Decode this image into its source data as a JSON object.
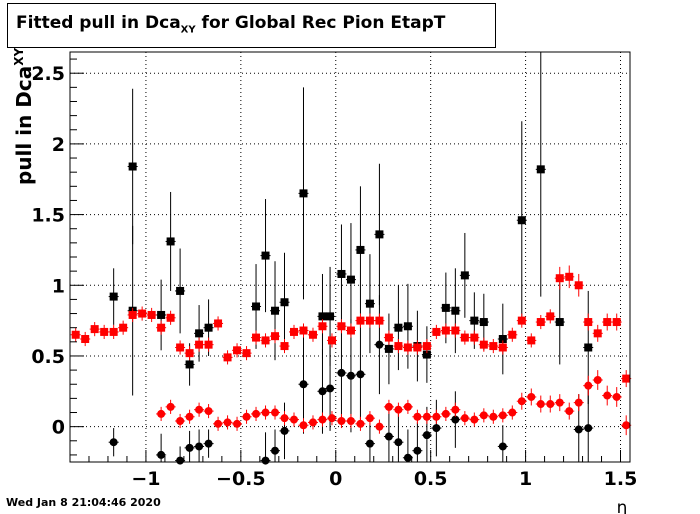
{
  "chart_data": {
    "type": "scatter",
    "title_main": "Fitted pull in Dca",
    "title_sub": "XY",
    "title_rest": " for Global Rec Pion EtapT",
    "xlabel": "η",
    "ylabel_main": "pull in Dca",
    "ylabel_sub": "XY",
    "xlim": [
      -1.4,
      1.55
    ],
    "ylim": [
      -0.25,
      2.65
    ],
    "xticks": [
      {
        "v": -1,
        "label": "−1"
      },
      {
        "v": -0.5,
        "label": "−0.5"
      },
      {
        "v": 0,
        "label": "0"
      },
      {
        "v": 0.5,
        "label": "0.5"
      },
      {
        "v": 1,
        "label": "1"
      },
      {
        "v": 1.5,
        "label": "1.5"
      }
    ],
    "yticks": [
      {
        "v": 0,
        "label": "0"
      },
      {
        "v": 0.5,
        "label": "0.5"
      },
      {
        "v": 1,
        "label": "1"
      },
      {
        "v": 1.5,
        "label": "1.5"
      },
      {
        "v": 2,
        "label": "2"
      },
      {
        "v": 2.5,
        "label": "2.5"
      }
    ],
    "grid": true,
    "series": [
      {
        "color": "#000000",
        "marker": "square",
        "points": [
          [
            -1.17,
            0.92,
            0.2
          ],
          [
            -1.07,
            0.82,
            0.6
          ],
          [
            -1.07,
            1.84,
            0.55
          ],
          [
            -0.92,
            0.79,
            0.25
          ],
          [
            -0.87,
            1.31,
            0.35
          ],
          [
            -0.82,
            0.96,
            0.3
          ],
          [
            -0.77,
            0.44,
            0.15
          ],
          [
            -0.72,
            0.66,
            0.2
          ],
          [
            -0.67,
            0.7,
            0.2
          ],
          [
            -0.42,
            0.85,
            0.3
          ],
          [
            -0.37,
            1.21,
            0.4
          ],
          [
            -0.32,
            0.82,
            0.35
          ],
          [
            -0.27,
            0.88,
            0.35
          ],
          [
            -0.17,
            1.65,
            0.75
          ],
          [
            -0.07,
            0.78,
            0.3
          ],
          [
            -0.03,
            0.78,
            0.35
          ],
          [
            0.03,
            1.08,
            0.35
          ],
          [
            0.08,
            1.04,
            0.4
          ],
          [
            0.13,
            1.25,
            0.45
          ],
          [
            0.18,
            0.87,
            0.35
          ],
          [
            0.23,
            1.36,
            0.5
          ],
          [
            0.28,
            0.55,
            0.25
          ],
          [
            0.33,
            0.7,
            0.3
          ],
          [
            0.38,
            0.71,
            0.3
          ],
          [
            0.43,
            0.57,
            0.25
          ],
          [
            0.48,
            0.51,
            0.2
          ],
          [
            0.58,
            0.84,
            0.25
          ],
          [
            0.63,
            0.82,
            0.3
          ],
          [
            0.68,
            1.07,
            0.3
          ],
          [
            0.73,
            0.75,
            0.2
          ],
          [
            0.78,
            0.74,
            0.2
          ],
          [
            0.88,
            0.62,
            0.25
          ],
          [
            0.98,
            1.46,
            0.7
          ],
          [
            1.08,
            1.82,
            0.9
          ],
          [
            1.18,
            0.74,
            0.3
          ],
          [
            1.33,
            0.56,
            0.4
          ]
        ]
      },
      {
        "color": "#000000",
        "marker": "circle",
        "points": [
          [
            -1.17,
            -0.11,
            0.1
          ],
          [
            -0.92,
            -0.2,
            0.15
          ],
          [
            -0.82,
            -0.24,
            0.1
          ],
          [
            -0.77,
            -0.15,
            0.12
          ],
          [
            -0.72,
            -0.14,
            0.12
          ],
          [
            -0.67,
            -0.12,
            0.1
          ],
          [
            -0.37,
            -0.24,
            0.2
          ],
          [
            -0.32,
            -0.17,
            0.15
          ],
          [
            -0.27,
            -0.03,
            0.2
          ],
          [
            -0.17,
            0.3,
            0.35
          ],
          [
            -0.07,
            0.25,
            0.3
          ],
          [
            -0.03,
            0.27,
            0.3
          ],
          [
            0.03,
            0.38,
            0.35
          ],
          [
            0.08,
            0.36,
            0.4
          ],
          [
            0.13,
            0.37,
            0.35
          ],
          [
            0.18,
            -0.12,
            0.15
          ],
          [
            0.23,
            0.58,
            0.35
          ],
          [
            0.28,
            -0.07,
            0.2
          ],
          [
            0.33,
            -0.11,
            0.2
          ],
          [
            0.38,
            -0.22,
            0.2
          ],
          [
            0.43,
            -0.17,
            0.2
          ],
          [
            0.48,
            -0.06,
            0.2
          ],
          [
            0.53,
            -0.01,
            0.2
          ],
          [
            0.63,
            0.05,
            0.2
          ],
          [
            0.88,
            -0.14,
            0.15
          ],
          [
            1.28,
            -0.02,
            0.25
          ],
          [
            1.33,
            -0.01,
            0.3
          ]
        ]
      },
      {
        "color": "#ff0000",
        "marker": "square",
        "points": [
          [
            -1.37,
            0.65,
            0.05
          ],
          [
            -1.32,
            0.62,
            0.05
          ],
          [
            -1.27,
            0.69,
            0.05
          ],
          [
            -1.22,
            0.67,
            0.05
          ],
          [
            -1.17,
            0.67,
            0.05
          ],
          [
            -1.12,
            0.7,
            0.05
          ],
          [
            -1.07,
            0.79,
            0.05
          ],
          [
            -1.02,
            0.8,
            0.05
          ],
          [
            -0.97,
            0.79,
            0.05
          ],
          [
            -0.92,
            0.7,
            0.05
          ],
          [
            -0.87,
            0.77,
            0.05
          ],
          [
            -0.82,
            0.56,
            0.05
          ],
          [
            -0.77,
            0.52,
            0.05
          ],
          [
            -0.72,
            0.58,
            0.05
          ],
          [
            -0.67,
            0.58,
            0.05
          ],
          [
            -0.62,
            0.73,
            0.05
          ],
          [
            -0.57,
            0.49,
            0.05
          ],
          [
            -0.52,
            0.54,
            0.05
          ],
          [
            -0.47,
            0.52,
            0.05
          ],
          [
            -0.42,
            0.63,
            0.05
          ],
          [
            -0.37,
            0.61,
            0.05
          ],
          [
            -0.32,
            0.64,
            0.05
          ],
          [
            -0.27,
            0.57,
            0.05
          ],
          [
            -0.22,
            0.67,
            0.05
          ],
          [
            -0.17,
            0.68,
            0.05
          ],
          [
            -0.12,
            0.65,
            0.05
          ],
          [
            -0.07,
            0.71,
            0.05
          ],
          [
            -0.02,
            0.61,
            0.05
          ],
          [
            0.03,
            0.71,
            0.05
          ],
          [
            0.08,
            0.68,
            0.05
          ],
          [
            0.13,
            0.75,
            0.05
          ],
          [
            0.18,
            0.75,
            0.05
          ],
          [
            0.23,
            0.75,
            0.05
          ],
          [
            0.28,
            0.63,
            0.05
          ],
          [
            0.33,
            0.57,
            0.05
          ],
          [
            0.38,
            0.56,
            0.05
          ],
          [
            0.43,
            0.56,
            0.05
          ],
          [
            0.48,
            0.57,
            0.05
          ],
          [
            0.53,
            0.67,
            0.05
          ],
          [
            0.58,
            0.68,
            0.05
          ],
          [
            0.63,
            0.68,
            0.05
          ],
          [
            0.68,
            0.63,
            0.05
          ],
          [
            0.73,
            0.63,
            0.05
          ],
          [
            0.78,
            0.58,
            0.05
          ],
          [
            0.83,
            0.57,
            0.05
          ],
          [
            0.88,
            0.56,
            0.05
          ],
          [
            0.93,
            0.65,
            0.05
          ],
          [
            0.98,
            0.75,
            0.05
          ],
          [
            1.03,
            0.61,
            0.05
          ],
          [
            1.08,
            0.74,
            0.05
          ],
          [
            1.13,
            0.78,
            0.05
          ],
          [
            1.18,
            1.05,
            0.08
          ],
          [
            1.23,
            1.06,
            0.08
          ],
          [
            1.28,
            1.0,
            0.08
          ],
          [
            1.33,
            0.74,
            0.06
          ],
          [
            1.38,
            0.66,
            0.06
          ],
          [
            1.43,
            0.74,
            0.06
          ],
          [
            1.48,
            0.74,
            0.06
          ],
          [
            1.53,
            0.34,
            0.06
          ]
        ]
      },
      {
        "color": "#ff0000",
        "marker": "circle",
        "points": [
          [
            -0.92,
            0.09,
            0.05
          ],
          [
            -0.87,
            0.14,
            0.05
          ],
          [
            -0.82,
            0.04,
            0.05
          ],
          [
            -0.77,
            0.07,
            0.05
          ],
          [
            -0.72,
            0.12,
            0.05
          ],
          [
            -0.67,
            0.11,
            0.05
          ],
          [
            -0.62,
            0.02,
            0.05
          ],
          [
            -0.57,
            0.03,
            0.05
          ],
          [
            -0.52,
            0.02,
            0.05
          ],
          [
            -0.47,
            0.07,
            0.05
          ],
          [
            -0.42,
            0.09,
            0.05
          ],
          [
            -0.37,
            0.1,
            0.05
          ],
          [
            -0.32,
            0.1,
            0.05
          ],
          [
            -0.27,
            0.06,
            0.05
          ],
          [
            -0.22,
            0.05,
            0.05
          ],
          [
            -0.17,
            0.01,
            0.05
          ],
          [
            -0.12,
            0.03,
            0.05
          ],
          [
            -0.07,
            0.05,
            0.05
          ],
          [
            -0.02,
            0.06,
            0.05
          ],
          [
            0.03,
            0.04,
            0.05
          ],
          [
            0.08,
            0.04,
            0.05
          ],
          [
            0.13,
            0.02,
            0.05
          ],
          [
            0.18,
            0.06,
            0.05
          ],
          [
            0.23,
            0.0,
            0.05
          ],
          [
            0.28,
            0.14,
            0.05
          ],
          [
            0.33,
            0.12,
            0.05
          ],
          [
            0.38,
            0.14,
            0.05
          ],
          [
            0.43,
            0.07,
            0.05
          ],
          [
            0.48,
            0.07,
            0.05
          ],
          [
            0.53,
            0.07,
            0.05
          ],
          [
            0.58,
            0.09,
            0.05
          ],
          [
            0.63,
            0.12,
            0.05
          ],
          [
            0.68,
            0.06,
            0.05
          ],
          [
            0.73,
            0.05,
            0.05
          ],
          [
            0.78,
            0.08,
            0.05
          ],
          [
            0.83,
            0.07,
            0.05
          ],
          [
            0.88,
            0.08,
            0.05
          ],
          [
            0.93,
            0.1,
            0.05
          ],
          [
            0.98,
            0.18,
            0.06
          ],
          [
            1.03,
            0.21,
            0.06
          ],
          [
            1.08,
            0.16,
            0.06
          ],
          [
            1.13,
            0.16,
            0.06
          ],
          [
            1.18,
            0.17,
            0.06
          ],
          [
            1.23,
            0.11,
            0.06
          ],
          [
            1.28,
            0.17,
            0.06
          ],
          [
            1.33,
            0.29,
            0.07
          ],
          [
            1.38,
            0.33,
            0.07
          ],
          [
            1.43,
            0.22,
            0.07
          ],
          [
            1.48,
            0.21,
            0.07
          ],
          [
            1.53,
            0.01,
            0.07
          ]
        ]
      }
    ]
  },
  "timestamp": "Wed Jan  8 21:04:46 2020"
}
